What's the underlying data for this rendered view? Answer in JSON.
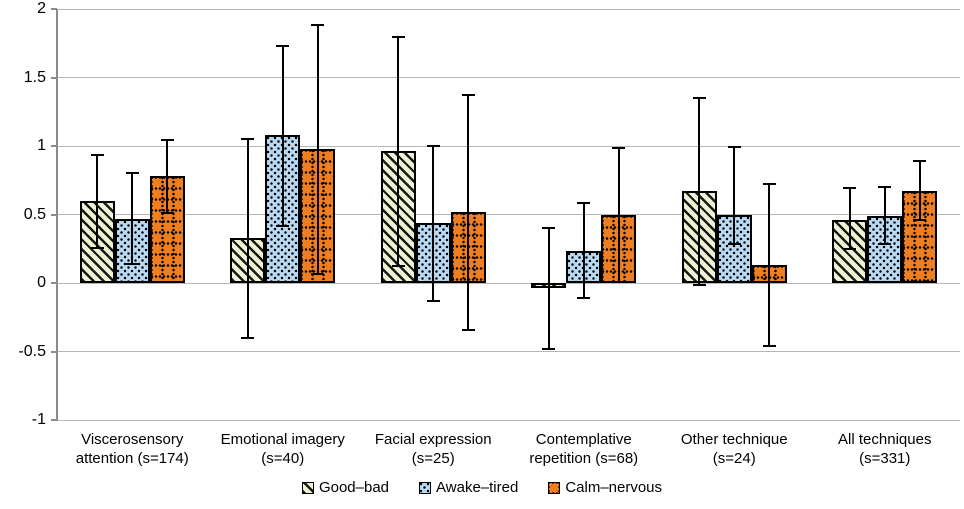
{
  "chart_data": {
    "type": "bar",
    "title": "",
    "description": "Grouped bar chart with error bars; three affect-dimension series across six technique categories",
    "categories": [
      {
        "label": "Viscerosensory attention (s=174)",
        "lines": [
          "Viscerosensory",
          "attention (s=174)"
        ]
      },
      {
        "label": "Emotional imagery (s=40)",
        "lines": [
          "Emotional imagery",
          "(s=40)"
        ]
      },
      {
        "label": "Facial expression (s=25)",
        "lines": [
          "Facial expression",
          "(s=25)"
        ]
      },
      {
        "label": "Contemplative repetition (s=68)",
        "lines": [
          "Contemplative",
          "repetition (s=68)"
        ]
      },
      {
        "label": "Other technique (s=24)",
        "lines": [
          "Other technique",
          "(s=24)"
        ]
      },
      {
        "label": "All techniques (s=331)",
        "lines": [
          "All techniques",
          "(s=331)"
        ]
      }
    ],
    "series": [
      {
        "name": "Good–bad",
        "fill": "#eef2d2",
        "pattern": "black diagonal stripes on pale green",
        "values": [
          0.6,
          0.33,
          0.96,
          -0.04,
          0.67,
          0.46
        ],
        "err_low": [
          0.25,
          -0.41,
          0.12,
          -0.49,
          -0.02,
          0.24
        ],
        "err_high": [
          0.94,
          1.06,
          1.8,
          0.41,
          1.36,
          0.7
        ]
      },
      {
        "name": "Awake–tired",
        "fill": "#b9d8f2",
        "pattern": "black speckled dots on light blue",
        "values": [
          0.47,
          1.08,
          0.44,
          0.23,
          0.5,
          0.49
        ],
        "err_low": [
          0.13,
          0.41,
          -0.14,
          -0.12,
          0.28,
          0.28
        ],
        "err_high": [
          0.81,
          1.74,
          1.01,
          0.59,
          1.0,
          0.71
        ]
      },
      {
        "name": "Calm–nervous",
        "fill": "#ee7e20",
        "pattern": "black dotted grid on orange",
        "values": [
          0.78,
          0.98,
          0.52,
          0.5,
          0.13,
          0.67
        ],
        "err_low": [
          0.5,
          0.06,
          -0.35,
          0.0,
          -0.47,
          0.45
        ],
        "err_high": [
          1.05,
          1.89,
          1.38,
          0.99,
          0.73,
          0.9
        ]
      }
    ],
    "y_axis": {
      "min": -1,
      "max": 2,
      "step": 0.5,
      "tick_labels": [
        "2",
        "1.5",
        "1",
        "0.5",
        "0",
        "-0.5",
        "-1"
      ]
    },
    "xlabel": "",
    "ylabel": "",
    "grid": true,
    "legend_position": "bottom"
  },
  "colors": {
    "background": "#ffffff",
    "gridline": "#b7b7b7",
    "axis": "#8c8c8c",
    "bar_border": "#000000",
    "error_bar": "#000000",
    "text": "#000000"
  }
}
